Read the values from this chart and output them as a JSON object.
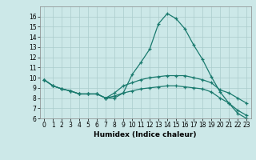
{
  "xlabel": "Humidex (Indice chaleur)",
  "background_color": "#cce8e8",
  "grid_color": "#aacccc",
  "line_color": "#1a7a6e",
  "xlim": [
    -0.5,
    23.5
  ],
  "ylim": [
    6,
    17.0
  ],
  "xticks": [
    0,
    1,
    2,
    3,
    4,
    5,
    6,
    7,
    8,
    9,
    10,
    11,
    12,
    13,
    14,
    15,
    16,
    17,
    18,
    19,
    20,
    21,
    22,
    23
  ],
  "yticks": [
    6,
    7,
    8,
    9,
    10,
    11,
    12,
    13,
    14,
    15,
    16
  ],
  "line1_x": [
    0,
    1,
    2,
    3,
    4,
    5,
    6,
    7,
    8,
    9,
    10,
    11,
    12,
    13,
    14,
    15,
    16,
    17,
    18,
    19,
    20,
    21,
    22,
    23
  ],
  "line1_y": [
    9.8,
    9.2,
    8.9,
    8.7,
    8.4,
    8.4,
    8.4,
    8.0,
    8.0,
    8.5,
    10.3,
    11.5,
    12.8,
    15.3,
    16.3,
    15.8,
    14.8,
    13.2,
    11.8,
    10.1,
    8.6,
    7.5,
    6.5,
    6.0
  ],
  "line2_x": [
    0,
    1,
    2,
    3,
    4,
    5,
    6,
    7,
    8,
    9,
    10,
    11,
    12,
    13,
    14,
    15,
    16,
    17,
    18,
    19,
    20,
    21,
    22,
    23
  ],
  "line2_y": [
    9.8,
    9.2,
    8.9,
    8.7,
    8.4,
    8.4,
    8.4,
    8.0,
    8.5,
    9.2,
    9.5,
    9.8,
    10.0,
    10.1,
    10.2,
    10.2,
    10.2,
    10.0,
    9.8,
    9.5,
    8.8,
    8.5,
    8.0,
    7.5
  ],
  "line3_x": [
    0,
    1,
    2,
    3,
    4,
    5,
    6,
    7,
    8,
    9,
    10,
    11,
    12,
    13,
    14,
    15,
    16,
    17,
    18,
    19,
    20,
    21,
    22,
    23
  ],
  "line3_y": [
    9.8,
    9.2,
    8.9,
    8.7,
    8.4,
    8.4,
    8.4,
    8.0,
    8.2,
    8.5,
    8.7,
    8.9,
    9.0,
    9.1,
    9.2,
    9.2,
    9.1,
    9.0,
    8.9,
    8.6,
    8.0,
    7.5,
    6.8,
    6.3
  ]
}
